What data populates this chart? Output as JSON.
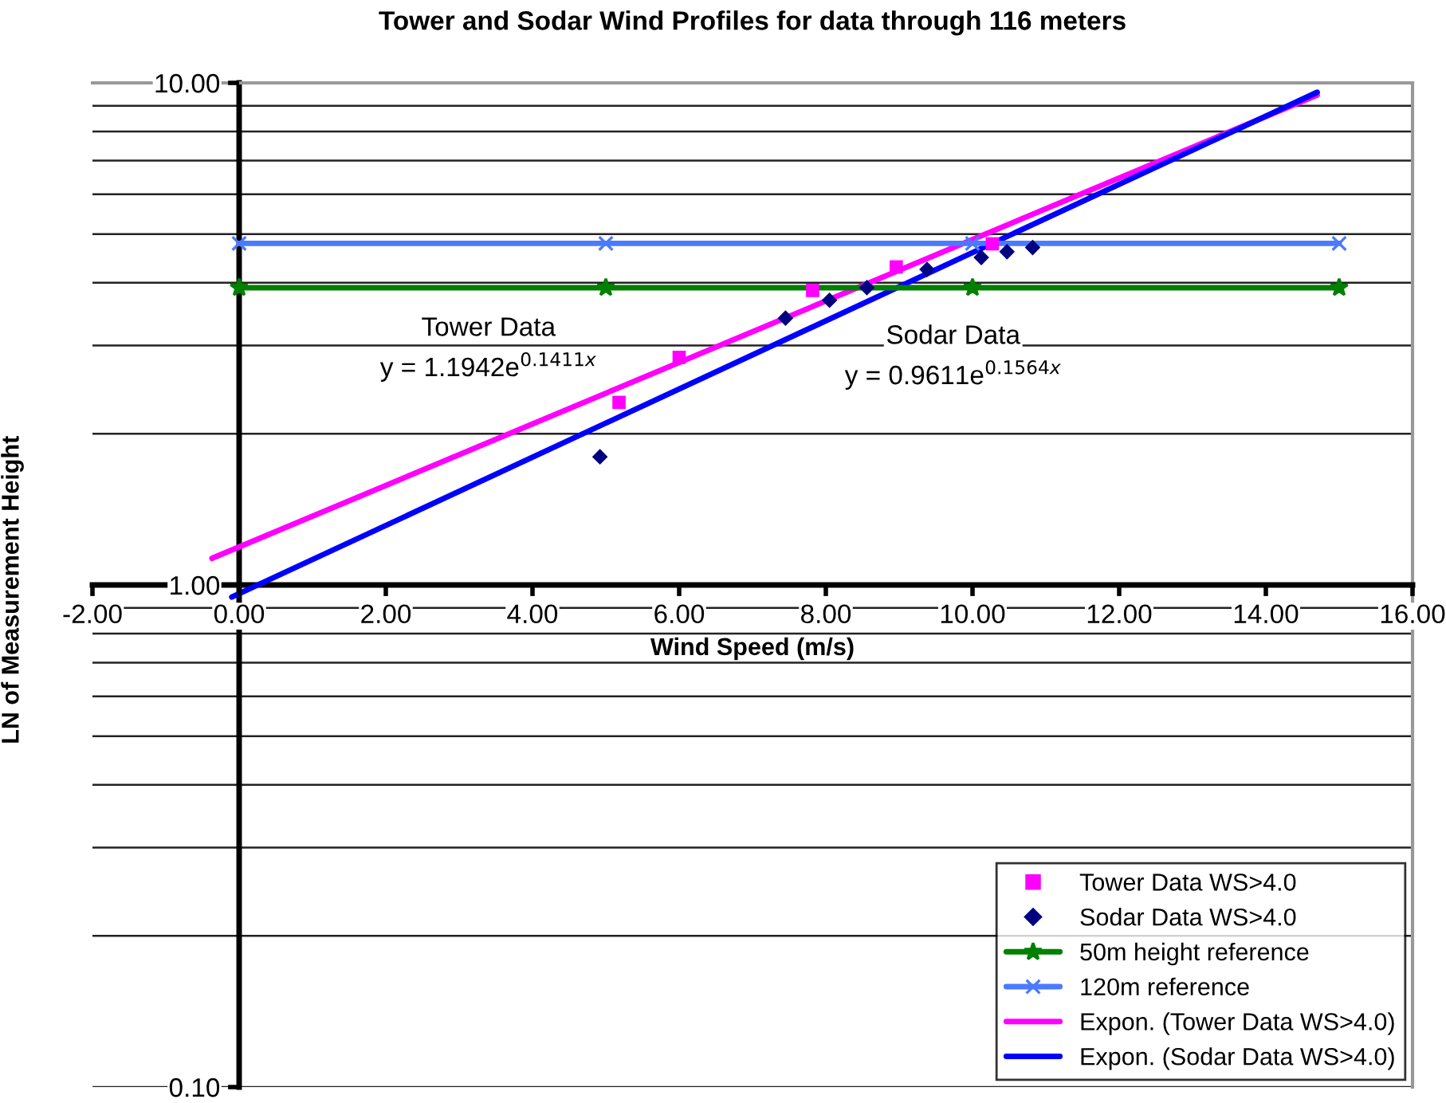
{
  "chart_data": {
    "type": "scatter",
    "title": "Tower and Sodar Wind Profiles for data through 116 meters",
    "xlabel": "Wind Speed (m/s)",
    "ylabel": "LN of Measurement Height",
    "log": "y",
    "grid": "y",
    "legend": "bottom right",
    "xlim": [
      -2,
      16
    ],
    "xticks": [
      {
        "value": -2,
        "label": "-2.00"
      },
      {
        "value": 0,
        "label": "0.00"
      },
      {
        "value": 2,
        "label": "2.00"
      },
      {
        "value": 4,
        "label": "4.00"
      },
      {
        "value": 6,
        "label": "6.00"
      },
      {
        "value": 8,
        "label": "8.00"
      },
      {
        "value": 10,
        "label": "10.00"
      },
      {
        "value": 12,
        "label": "12.00"
      },
      {
        "value": 14,
        "label": "14.00"
      },
      {
        "value": 16,
        "label": "16.00"
      }
    ],
    "ylim": [
      0.1,
      10
    ],
    "yticks": [
      {
        "value": 0.1,
        "label": "0.10"
      },
      {
        "value": 0.2,
        "label": null
      },
      {
        "value": 0.3,
        "label": null
      },
      {
        "value": 0.4,
        "label": null
      },
      {
        "value": 0.5,
        "label": null
      },
      {
        "value": 0.6,
        "label": null
      },
      {
        "value": 0.7,
        "label": null
      },
      {
        "value": 0.8,
        "label": null
      },
      {
        "value": 0.9,
        "label": null
      },
      {
        "value": 1,
        "label": "1.00"
      },
      {
        "value": 2,
        "label": null
      },
      {
        "value": 3,
        "label": null
      },
      {
        "value": 4,
        "label": null
      },
      {
        "value": 5,
        "label": null
      },
      {
        "value": 6,
        "label": null
      },
      {
        "value": 7,
        "label": null
      },
      {
        "value": 8,
        "label": null
      },
      {
        "value": 9,
        "label": null
      },
      {
        "value": 10,
        "label": "10.00"
      }
    ],
    "series": [
      {
        "name": "Tower Data WS>4.0",
        "type": "scatter",
        "marker": "square",
        "color": "#ff00ff",
        "x": [
          5.18,
          6.0,
          7.82,
          8.96,
          10.27
        ],
        "values": [
          2.31,
          2.84,
          3.86,
          4.3,
          4.78
        ]
      },
      {
        "name": "Sodar Data WS>4.0",
        "type": "scatter",
        "marker": "diamond",
        "color": "#000080",
        "x": [
          4.92,
          7.45,
          8.05,
          8.56,
          9.38,
          10.12,
          10.47,
          10.82
        ],
        "values": [
          1.8,
          3.4,
          3.69,
          3.91,
          4.25,
          4.49,
          4.61,
          4.7
        ]
      },
      {
        "name": "50m height reference",
        "type": "line",
        "marker": "star",
        "line_style": "solid",
        "color": "#008000",
        "x": [
          0,
          5,
          10,
          15
        ],
        "values": [
          3.91,
          3.91,
          3.91,
          3.91
        ]
      },
      {
        "name": "120m reference",
        "type": "line",
        "marker": "cross",
        "line_style": "solid",
        "color": "#4a7aff",
        "x": [
          0,
          5,
          10,
          15
        ],
        "values": [
          4.79,
          4.79,
          4.79,
          4.79
        ]
      },
      {
        "name": "Expon. (Tower Data WS>4.0)",
        "type": "line",
        "marker": "none",
        "line_style": "solid",
        "color": "#ff00ff",
        "x": [
          -0.37,
          14.7
        ],
        "values": [
          1.13,
          9.46
        ]
      },
      {
        "name": "Expon. (Sodar Data WS>4.0)",
        "type": "line",
        "marker": "none",
        "line_style": "solid",
        "color": "#0000ff",
        "x": [
          -0.1,
          14.7
        ],
        "values": [
          0.946,
          9.58
        ]
      }
    ],
    "annotations": [
      "Tower Data",
      "y = 1.1942e$^{0.1411x}$",
      "Sodar Data",
      "y = 0.9611e$^{0.1564x}$"
    ]
  }
}
